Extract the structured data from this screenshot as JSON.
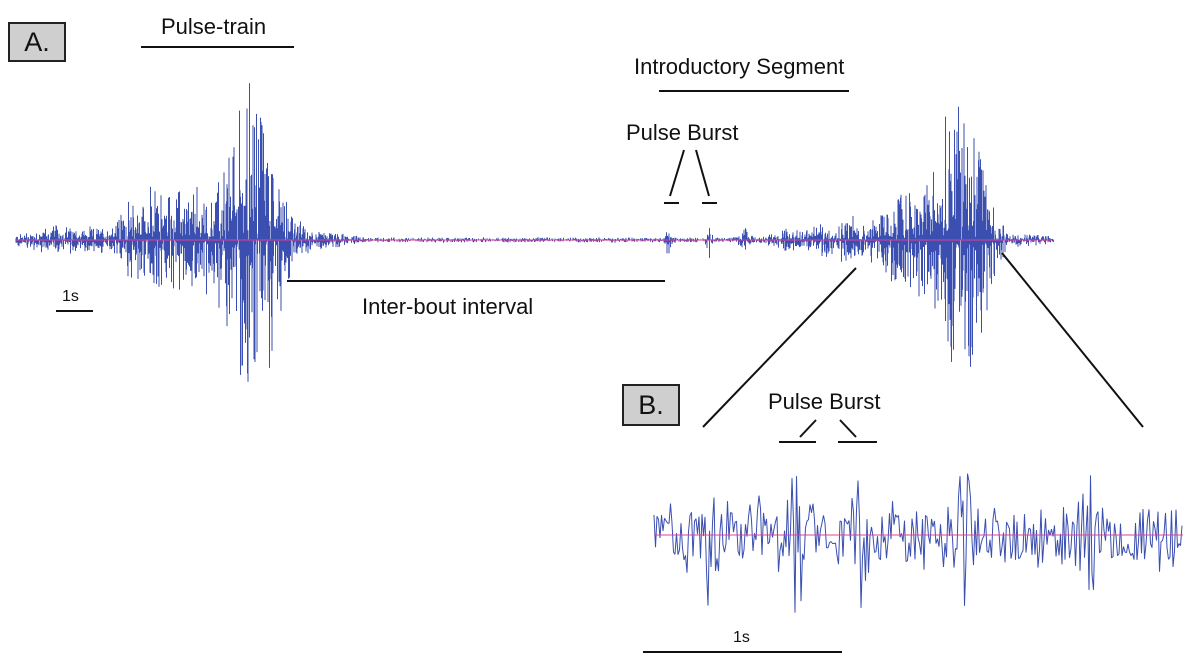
{
  "panels": {
    "a": "A.",
    "b": "B."
  },
  "labels": {
    "pulse_train": "Pulse-train",
    "introductory_segment": "Introductory Segment",
    "pulse_burst_top": "Pulse Burst",
    "inter_bout_interval": "Inter-bout interval",
    "scale_top": "1s",
    "pulse_burst_inset": "Pulse Burst",
    "scale_inset": "1s"
  },
  "colors": {
    "trace": "#3a4fb0",
    "baseline": "#e0409a",
    "ink": "#111111",
    "panel_bg": "#cfcfcf"
  }
}
